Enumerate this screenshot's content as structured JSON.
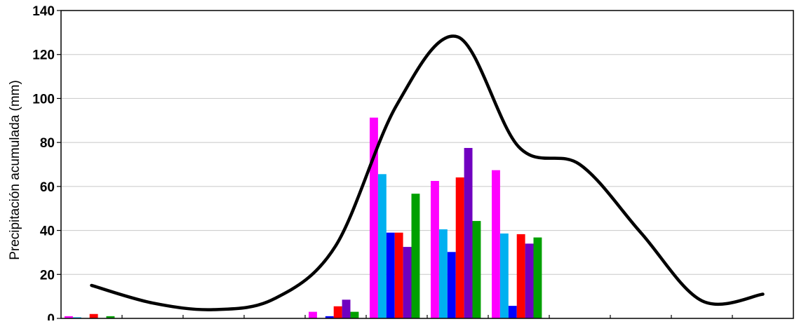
{
  "chart_data": {
    "type": "bar",
    "ylabel": "Precipitación acumulada (mm)",
    "ylim": [
      0,
      140
    ],
    "yticks": [
      0,
      20,
      40,
      60,
      80,
      100,
      120,
      140
    ],
    "grid": true,
    "x_category_count": 12,
    "bar_colors": [
      "#ff00ff",
      "#00b0f0",
      "#0000ff",
      "#ff0000",
      "#7000c0",
      "#00a000"
    ],
    "bar_groups": [
      [
        1,
        0.5,
        0,
        2,
        0,
        1
      ],
      [
        0,
        0,
        0,
        0,
        0,
        0
      ],
      [
        0,
        0,
        0,
        0,
        0,
        0
      ],
      [
        0,
        0,
        0,
        0,
        0,
        0
      ],
      [
        3,
        0,
        1,
        5.5,
        8.5,
        3
      ],
      [
        91.3,
        65.6,
        39,
        39,
        32.5,
        56.7
      ],
      [
        62.5,
        40.5,
        30.2,
        64.1,
        77.5,
        44.3
      ],
      [
        67.4,
        38.6,
        5.7,
        38.3,
        34,
        36.8
      ],
      [
        0,
        0,
        0,
        0,
        0,
        0
      ],
      [
        0,
        0,
        0,
        0,
        0,
        0
      ],
      [
        0,
        0,
        0,
        0,
        0,
        0
      ],
      [
        0,
        0,
        0,
        0,
        0,
        0
      ]
    ],
    "line_series": {
      "color": "#000000",
      "x": [
        0.5,
        1.5,
        2.5,
        3.5,
        4.5,
        5.5,
        6.5,
        7.5,
        8.5,
        9.5,
        10.5,
        11.5
      ],
      "values": [
        15,
        7,
        4,
        9,
        33,
        97,
        128,
        78,
        70,
        39,
        8,
        11
      ]
    }
  }
}
